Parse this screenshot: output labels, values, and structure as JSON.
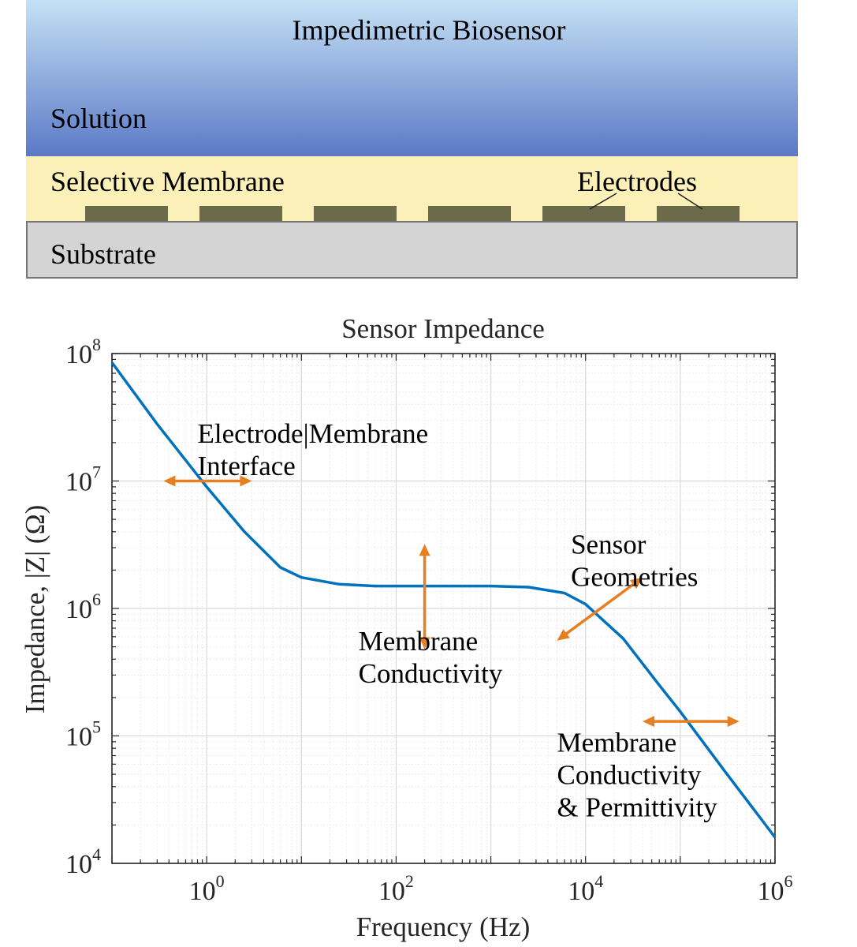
{
  "diagram": {
    "title": "Impedimetric Biosensor",
    "solution_label": "Solution",
    "membrane_label": "Selective Membrane",
    "electrodes_label": "Electrodes",
    "substrate_label": "Substrate",
    "colors": {
      "solution_top": "#c5e1f5",
      "solution_bottom": "#5b79c6",
      "membrane": "#faf0b8",
      "electrode": "#6b6a4b",
      "substrate": "#d4d4d4"
    }
  },
  "chart_data": {
    "type": "line",
    "title": "Sensor Impedance",
    "xlabel": "Frequency (Hz)",
    "ylabel": "Impedance, |Z| (Ω)",
    "x_scale": "log",
    "y_scale": "log",
    "xlim": [
      0.1,
      1000000
    ],
    "ylim": [
      10000,
      100000000
    ],
    "grid": true,
    "xticks": [
      {
        "base": "10",
        "exp": "0",
        "value": 1
      },
      {
        "base": "10",
        "exp": "2",
        "value": 100
      },
      {
        "base": "10",
        "exp": "4",
        "value": 10000
      },
      {
        "base": "10",
        "exp": "6",
        "value": 1000000
      }
    ],
    "yticks": [
      {
        "base": "10",
        "exp": "4",
        "value": 10000
      },
      {
        "base": "10",
        "exp": "5",
        "value": 100000
      },
      {
        "base": "10",
        "exp": "6",
        "value": 1000000
      },
      {
        "base": "10",
        "exp": "7",
        "value": 10000000
      },
      {
        "base": "10",
        "exp": "8",
        "value": 100000000
      }
    ],
    "series": [
      {
        "color": "#0072bd",
        "x": [
          0.1,
          0.3,
          1,
          2.5,
          6,
          10,
          25,
          60,
          100,
          300,
          1000,
          2500,
          6000,
          10000,
          25000,
          60000,
          100000,
          300000,
          1000000
        ],
        "y": [
          85000000,
          28000000,
          9000000,
          4000000,
          2100000,
          1750000,
          1550000,
          1500000,
          1500000,
          1500000,
          1500000,
          1470000,
          1320000,
          1080000,
          580000,
          250000,
          155000,
          52000,
          16000
        ]
      }
    ],
    "annotations": [
      {
        "lines": [
          "Electrode|Membrane",
          "Interface"
        ],
        "x": 0.8,
        "y": 20000000
      },
      {
        "lines": [
          "Membrane",
          "Conductivity"
        ],
        "x": 40,
        "y": 470000
      },
      {
        "lines": [
          "Sensor",
          "Geometries"
        ],
        "x": 7000,
        "y": 2700000
      },
      {
        "lines": [
          "Membrane",
          "Conductivity",
          "& Permittivity"
        ],
        "x": 5000,
        "y": 75000
      }
    ],
    "arrows": [
      {
        "color": "#e67e22",
        "from": [
          0.35,
          10000000
        ],
        "to": [
          3,
          10000000
        ]
      },
      {
        "color": "#e67e22",
        "from": [
          200,
          3200000
        ],
        "to": [
          200,
          480000
        ]
      },
      {
        "color": "#e67e22",
        "from": [
          5000,
          560000
        ],
        "to": [
          40000,
          1750000
        ]
      },
      {
        "color": "#e67e22",
        "from": [
          40000,
          130000
        ],
        "to": [
          420000,
          130000
        ]
      }
    ]
  }
}
